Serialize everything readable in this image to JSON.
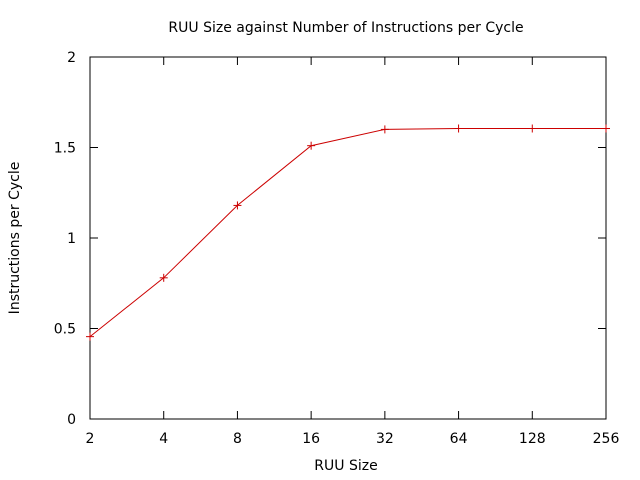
{
  "chart_data": {
    "type": "line",
    "title": "RUU Size against Number of Instructions per Cycle",
    "xlabel": "RUU Size",
    "ylabel": "Instructions per Cycle",
    "x_scale": "log2",
    "x": [
      2,
      4,
      8,
      16,
      32,
      64,
      128,
      256
    ],
    "xticks": [
      "2",
      "4",
      "8",
      "16",
      "32",
      "64",
      "128",
      "256"
    ],
    "ylim": [
      0,
      2
    ],
    "yticks": [
      "0",
      "0.5",
      "1",
      "1.5",
      "2"
    ],
    "grid": false,
    "series": [
      {
        "values": [
          0.455,
          0.78,
          1.18,
          1.51,
          1.6,
          1.605,
          1.605,
          1.605
        ],
        "color": "#cc0000",
        "marker": "plus"
      }
    ]
  }
}
